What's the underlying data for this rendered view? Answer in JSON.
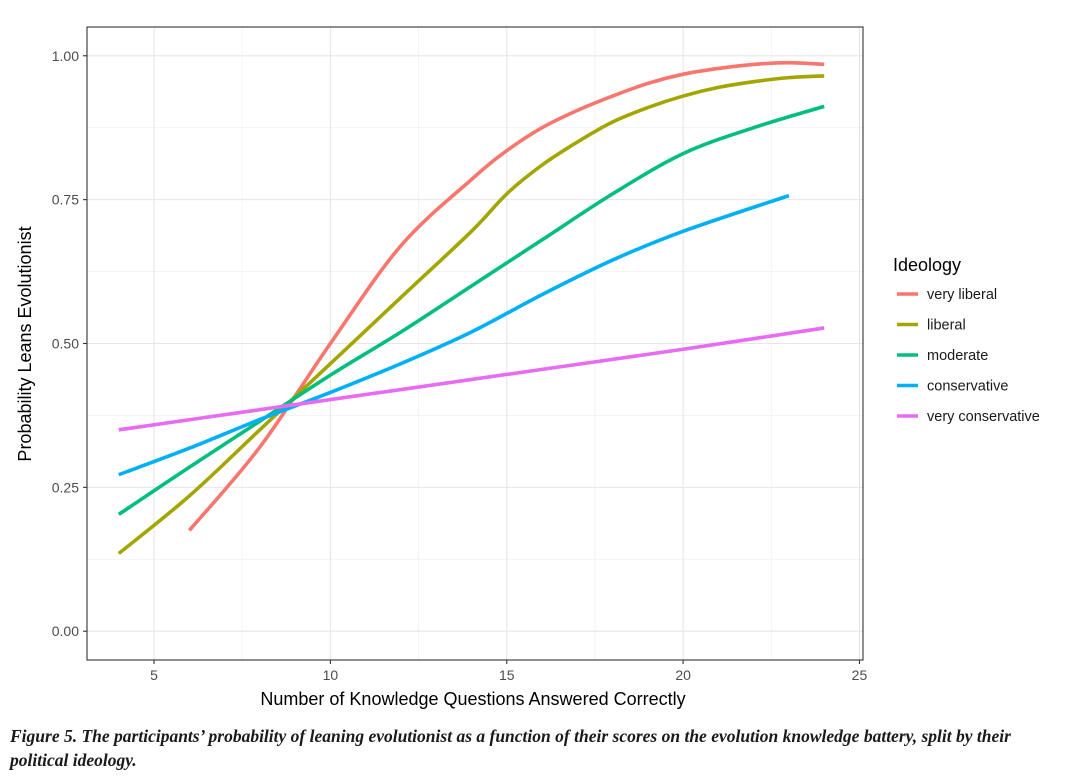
{
  "chart_data": {
    "type": "line",
    "xlabel": "Number of Knowledge Questions Answered Correctly",
    "ylabel": "Probability Leans Evolutionist",
    "xlim": [
      3.1,
      25.1
    ],
    "ylim": [
      -0.05,
      1.05
    ],
    "x_ticks": [
      5,
      10,
      15,
      20,
      25
    ],
    "x_tick_labels": [
      "5",
      "10",
      "15",
      "20",
      "25"
    ],
    "y_ticks": [
      0,
      0.25,
      0.5,
      0.75,
      1.0
    ],
    "y_tick_labels": [
      "0.00",
      "0.25",
      "0.50",
      "0.75",
      "1.00"
    ],
    "grid": true,
    "legend": {
      "title": "Ideology",
      "placement": "right"
    },
    "series": [
      {
        "name": "very liberal",
        "color": "#F8766D",
        "points": [
          [
            6,
            0.175
          ],
          [
            8,
            0.32
          ],
          [
            10,
            0.5
          ],
          [
            12,
            0.67
          ],
          [
            14,
            0.785
          ],
          [
            15,
            0.835
          ],
          [
            16,
            0.875
          ],
          [
            17,
            0.905
          ],
          [
            18,
            0.93
          ],
          [
            19,
            0.952
          ],
          [
            20,
            0.968
          ],
          [
            21,
            0.978
          ],
          [
            22,
            0.985
          ],
          [
            23,
            0.988
          ],
          [
            24,
            0.985
          ]
        ]
      },
      {
        "name": "liberal",
        "color": "#A3A500",
        "points": [
          [
            4,
            0.135
          ],
          [
            6,
            0.235
          ],
          [
            8,
            0.35
          ],
          [
            10,
            0.465
          ],
          [
            12,
            0.58
          ],
          [
            14,
            0.695
          ],
          [
            15,
            0.76
          ],
          [
            16,
            0.81
          ],
          [
            17,
            0.85
          ],
          [
            18,
            0.885
          ],
          [
            19,
            0.91
          ],
          [
            20,
            0.93
          ],
          [
            21,
            0.945
          ],
          [
            22,
            0.955
          ],
          [
            23,
            0.962
          ],
          [
            24,
            0.965
          ]
        ]
      },
      {
        "name": "moderate",
        "color": "#00BF7D",
        "points": [
          [
            4,
            0.203
          ],
          [
            6,
            0.285
          ],
          [
            8,
            0.365
          ],
          [
            10,
            0.445
          ],
          [
            12,
            0.52
          ],
          [
            14,
            0.6
          ],
          [
            16,
            0.68
          ],
          [
            18,
            0.76
          ],
          [
            20,
            0.83
          ],
          [
            22,
            0.875
          ],
          [
            24,
            0.912
          ]
        ]
      },
      {
        "name": "conservative",
        "color": "#00B0F6",
        "points": [
          [
            4,
            0.272
          ],
          [
            6,
            0.318
          ],
          [
            8,
            0.368
          ],
          [
            10,
            0.415
          ],
          [
            12,
            0.465
          ],
          [
            14,
            0.52
          ],
          [
            16,
            0.585
          ],
          [
            18,
            0.645
          ],
          [
            20,
            0.695
          ],
          [
            23,
            0.757
          ]
        ]
      },
      {
        "name": "very conservative",
        "color": "#E76BF3",
        "points": [
          [
            4,
            0.35
          ],
          [
            8,
            0.385
          ],
          [
            12,
            0.42
          ],
          [
            16,
            0.455
          ],
          [
            20,
            0.49
          ],
          [
            24,
            0.527
          ]
        ]
      }
    ]
  },
  "caption": "Figure 5. The participants’ probability of leaning evolutionist as a function of their scores on the evolution knowledge battery, split by their political ideology."
}
